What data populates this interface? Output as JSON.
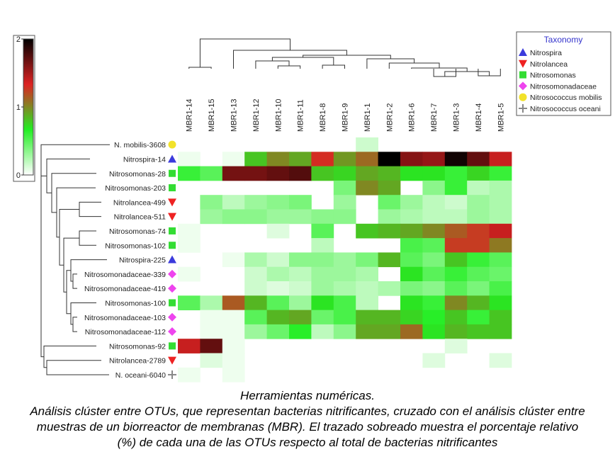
{
  "chart_data": {
    "type": "heatmap",
    "columns": [
      "MBR1-14",
      "MBR1-15",
      "MBR1-13",
      "MBR1-12",
      "MBR1-10",
      "MBR1-11",
      "MBR1-8",
      "MBR1-9",
      "MBR1-1",
      "MBR1-2",
      "MBR1-6",
      "MBR1-7",
      "MBR1-3",
      "MBR1-4",
      "MBR1-5"
    ],
    "rows": [
      {
        "label": "N. mobilis-3608",
        "taxon": "Nitrosococcus mobilis"
      },
      {
        "label": "Nitrospira-14",
        "taxon": "Nitrospira"
      },
      {
        "label": "Nitrosomonas-28",
        "taxon": "Nitrosomonas"
      },
      {
        "label": "Nitrosomonas-203",
        "taxon": "Nitrosomonas"
      },
      {
        "label": "Nitrolancea-499",
        "taxon": "Nitrolancea"
      },
      {
        "label": "Nitrolancea-511",
        "taxon": "Nitrolancea"
      },
      {
        "label": "Nitrosomonas-74",
        "taxon": "Nitrosomonas"
      },
      {
        "label": "Nitrosomonas-102",
        "taxon": "Nitrosomonas"
      },
      {
        "label": "Nitrospira-225",
        "taxon": "Nitrospira"
      },
      {
        "label": "Nitrosomonadaceae-339",
        "taxon": "Nitrosomonadaceae"
      },
      {
        "label": "Nitrosomonadaceae-419",
        "taxon": "Nitrosomonadaceae"
      },
      {
        "label": "Nitrosomonas-100",
        "taxon": "Nitrosomonas"
      },
      {
        "label": "Nitrosomonadaceae-103",
        "taxon": "Nitrosomonadaceae"
      },
      {
        "label": "Nitrosomonadaceae-112",
        "taxon": "Nitrosomonadaceae"
      },
      {
        "label": "Nitrosomonas-92",
        "taxon": "Nitrosomonas"
      },
      {
        "label": "Nitrolancea-2789",
        "taxon": "Nitrolancea"
      },
      {
        "label": "N. oceani-6040",
        "taxon": "Nitrosococcus oceani"
      }
    ],
    "values": [
      [
        null,
        null,
        null,
        null,
        null,
        null,
        null,
        null,
        0.15,
        null,
        null,
        null,
        null,
        null,
        null
      ],
      [
        0.05,
        null,
        0.05,
        0.8,
        1.0,
        0.9,
        1.3,
        0.95,
        1.1,
        2.0,
        1.6,
        1.55,
        1.95,
        1.7,
        1.4
      ],
      [
        0.6,
        0.5,
        1.65,
        1.65,
        1.7,
        1.75,
        0.8,
        0.75,
        0.9,
        0.85,
        0.7,
        0.7,
        0.6,
        0.75,
        0.6
      ],
      [
        null,
        null,
        null,
        null,
        null,
        null,
        null,
        0.4,
        1.0,
        0.9,
        null,
        0.35,
        0.6,
        0.2,
        0.25
      ],
      [
        null,
        0.35,
        0.2,
        0.3,
        0.35,
        0.4,
        null,
        0.3,
        null,
        0.45,
        0.3,
        0.2,
        0.15,
        0.3,
        0.25
      ],
      [
        null,
        0.3,
        0.35,
        0.35,
        0.3,
        0.3,
        0.35,
        0.35,
        null,
        0.3,
        0.25,
        0.2,
        0.2,
        0.3,
        0.25
      ],
      [
        0.05,
        null,
        null,
        null,
        0.1,
        null,
        0.5,
        null,
        0.8,
        0.85,
        0.9,
        1.0,
        1.15,
        1.25,
        1.4
      ],
      [
        0.05,
        null,
        null,
        null,
        null,
        null,
        0.2,
        null,
        null,
        null,
        0.55,
        0.5,
        1.25,
        1.25,
        1.05
      ],
      [
        null,
        null,
        0.05,
        0.25,
        0.15,
        0.35,
        0.35,
        0.3,
        0.4,
        0.85,
        0.5,
        0.4,
        0.8,
        0.6,
        0.5
      ],
      [
        0.05,
        null,
        null,
        0.15,
        0.25,
        0.2,
        0.3,
        0.3,
        0.25,
        null,
        0.7,
        0.5,
        0.6,
        0.5,
        0.45
      ],
      [
        null,
        null,
        null,
        0.15,
        0.1,
        0.15,
        0.3,
        0.25,
        0.2,
        0.25,
        0.4,
        0.35,
        0.5,
        0.4,
        0.55
      ],
      [
        0.5,
        0.25,
        1.15,
        0.85,
        0.5,
        0.3,
        0.7,
        0.55,
        0.2,
        null,
        0.7,
        0.6,
        1.0,
        0.85,
        0.7
      ],
      [
        null,
        0.05,
        0.05,
        0.5,
        0.85,
        0.9,
        0.45,
        0.55,
        0.85,
        0.85,
        0.75,
        0.65,
        0.8,
        0.6,
        0.8
      ],
      [
        null,
        0.05,
        0.05,
        0.3,
        0.45,
        0.65,
        0.2,
        0.35,
        0.9,
        0.9,
        1.1,
        0.7,
        0.85,
        0.8,
        0.8
      ],
      [
        1.4,
        1.7,
        0.05,
        null,
        null,
        null,
        null,
        null,
        null,
        null,
        null,
        null,
        0.1,
        null,
        null
      ],
      [
        null,
        0.1,
        0.05,
        null,
        null,
        null,
        null,
        null,
        null,
        null,
        null,
        0.1,
        null,
        null,
        0.1
      ],
      [
        0.05,
        null,
        0.05,
        null,
        null,
        null,
        null,
        null,
        null,
        null,
        null,
        null,
        null,
        null,
        null
      ]
    ],
    "color_scale": {
      "min": 0,
      "max": 2,
      "ticks": [
        "0",
        "1",
        "2"
      ],
      "colors": [
        "#ffffff",
        "#22ee22",
        "#dd2222",
        "#000000"
      ]
    },
    "legend": {
      "title": "Taxonomy",
      "placement": "top-right",
      "entries": [
        {
          "name": "Nitrospira",
          "shape": "triangle-up",
          "color": "#3b3bdc"
        },
        {
          "name": "Nitrolancea",
          "shape": "triangle-down",
          "color": "#ee2222"
        },
        {
          "name": "Nitrosomonas",
          "shape": "square",
          "color": "#33dd33"
        },
        {
          "name": "Nitrosomonadaceae",
          "shape": "diamond",
          "color": "#ee44ee"
        },
        {
          "name": "Nitrosococcus mobilis",
          "shape": "circle",
          "color": "#f2e22a"
        },
        {
          "name": "Nitrosococcus oceani",
          "shape": "plus",
          "color": "#888888"
        }
      ]
    }
  },
  "caption": {
    "line1": "Herramientas numéricas.",
    "line2": "Análisis clúster entre OTUs, que representan bacterias nitrificantes, cruzado con el análisis clúster entre",
    "line3": "muestras de un biorreactor de membranas (MBR). El trazado sobreado muestra el porcentaje relativo",
    "line4": "(%) de cada una de las OTUs respecto al total de bacterias nitrificantes"
  }
}
